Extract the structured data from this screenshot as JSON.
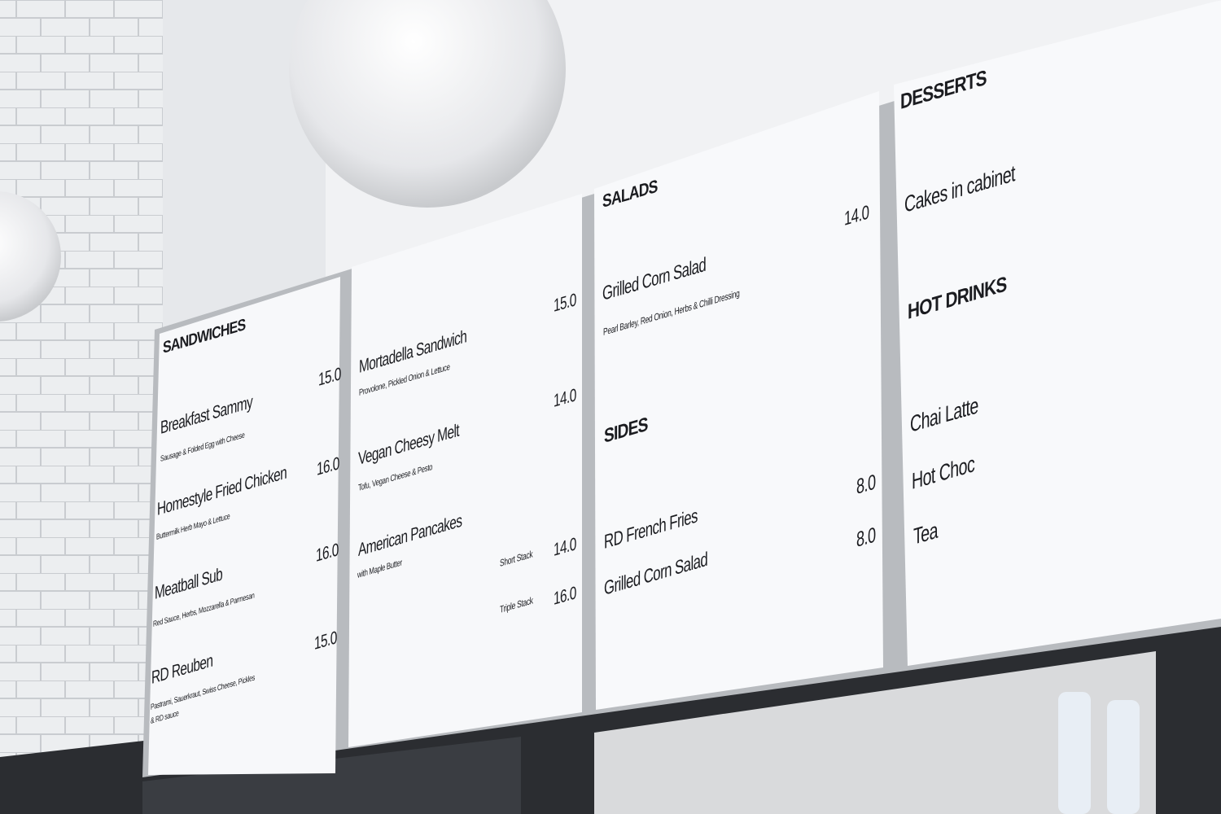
{
  "menu": {
    "sandwiches": {
      "heading": "SANDWICHES",
      "items": [
        {
          "name": "Breakfast Sammy",
          "desc": "Sausage & Folded Egg with Cheese",
          "price": "15.0"
        },
        {
          "name": "Homestyle Fried Chicken",
          "desc": "Buttermilk Herb Mayo & Lettuce",
          "price": "16.0"
        },
        {
          "name": "Meatball Sub",
          "desc": "Red Sauce, Herbs, Mozzarella & Parmesan",
          "price": "16.0"
        },
        {
          "name": "RD Reuben",
          "desc": "Pastrami, Sauerkraut, Swiss Cheese, Pickles",
          "desc2": "& RD sauce",
          "price": "15.0"
        }
      ]
    },
    "sandwiches2": {
      "items": [
        {
          "name": "Mortadella Sandwich",
          "desc": "Provolone, Pickled Onion & Lettuce",
          "price": "15.0"
        },
        {
          "name": "Vegan Cheesy Melt",
          "desc": "Tofu, Vegan Cheese & Pesto",
          "price": "14.0"
        },
        {
          "name": "American Pancakes",
          "desc": "with Maple Butter",
          "option1": "Short Stack",
          "price1": "14.0",
          "option2": "Triple Stack",
          "price2": "16.0"
        }
      ]
    },
    "salads": {
      "heading": "SALADS",
      "items": [
        {
          "name": "Grilled Corn Salad",
          "desc": "Pearl Barley, Red Onion, Herbs & Chilli Dressing",
          "price": "14.0"
        }
      ]
    },
    "sides": {
      "heading": "SIDES",
      "items": [
        {
          "name": "RD French Fries",
          "price": "8.0"
        },
        {
          "name": "Grilled Corn Salad",
          "price": "8.0"
        }
      ]
    },
    "desserts": {
      "heading": "DESSERTS",
      "items": [
        {
          "name": "Cakes in cabinet"
        }
      ]
    },
    "hot_drinks": {
      "heading": "HOT DRINKS",
      "items": [
        {
          "name": "Chai Latte"
        },
        {
          "name": "Hot Choc"
        },
        {
          "name": "Tea"
        }
      ]
    }
  }
}
